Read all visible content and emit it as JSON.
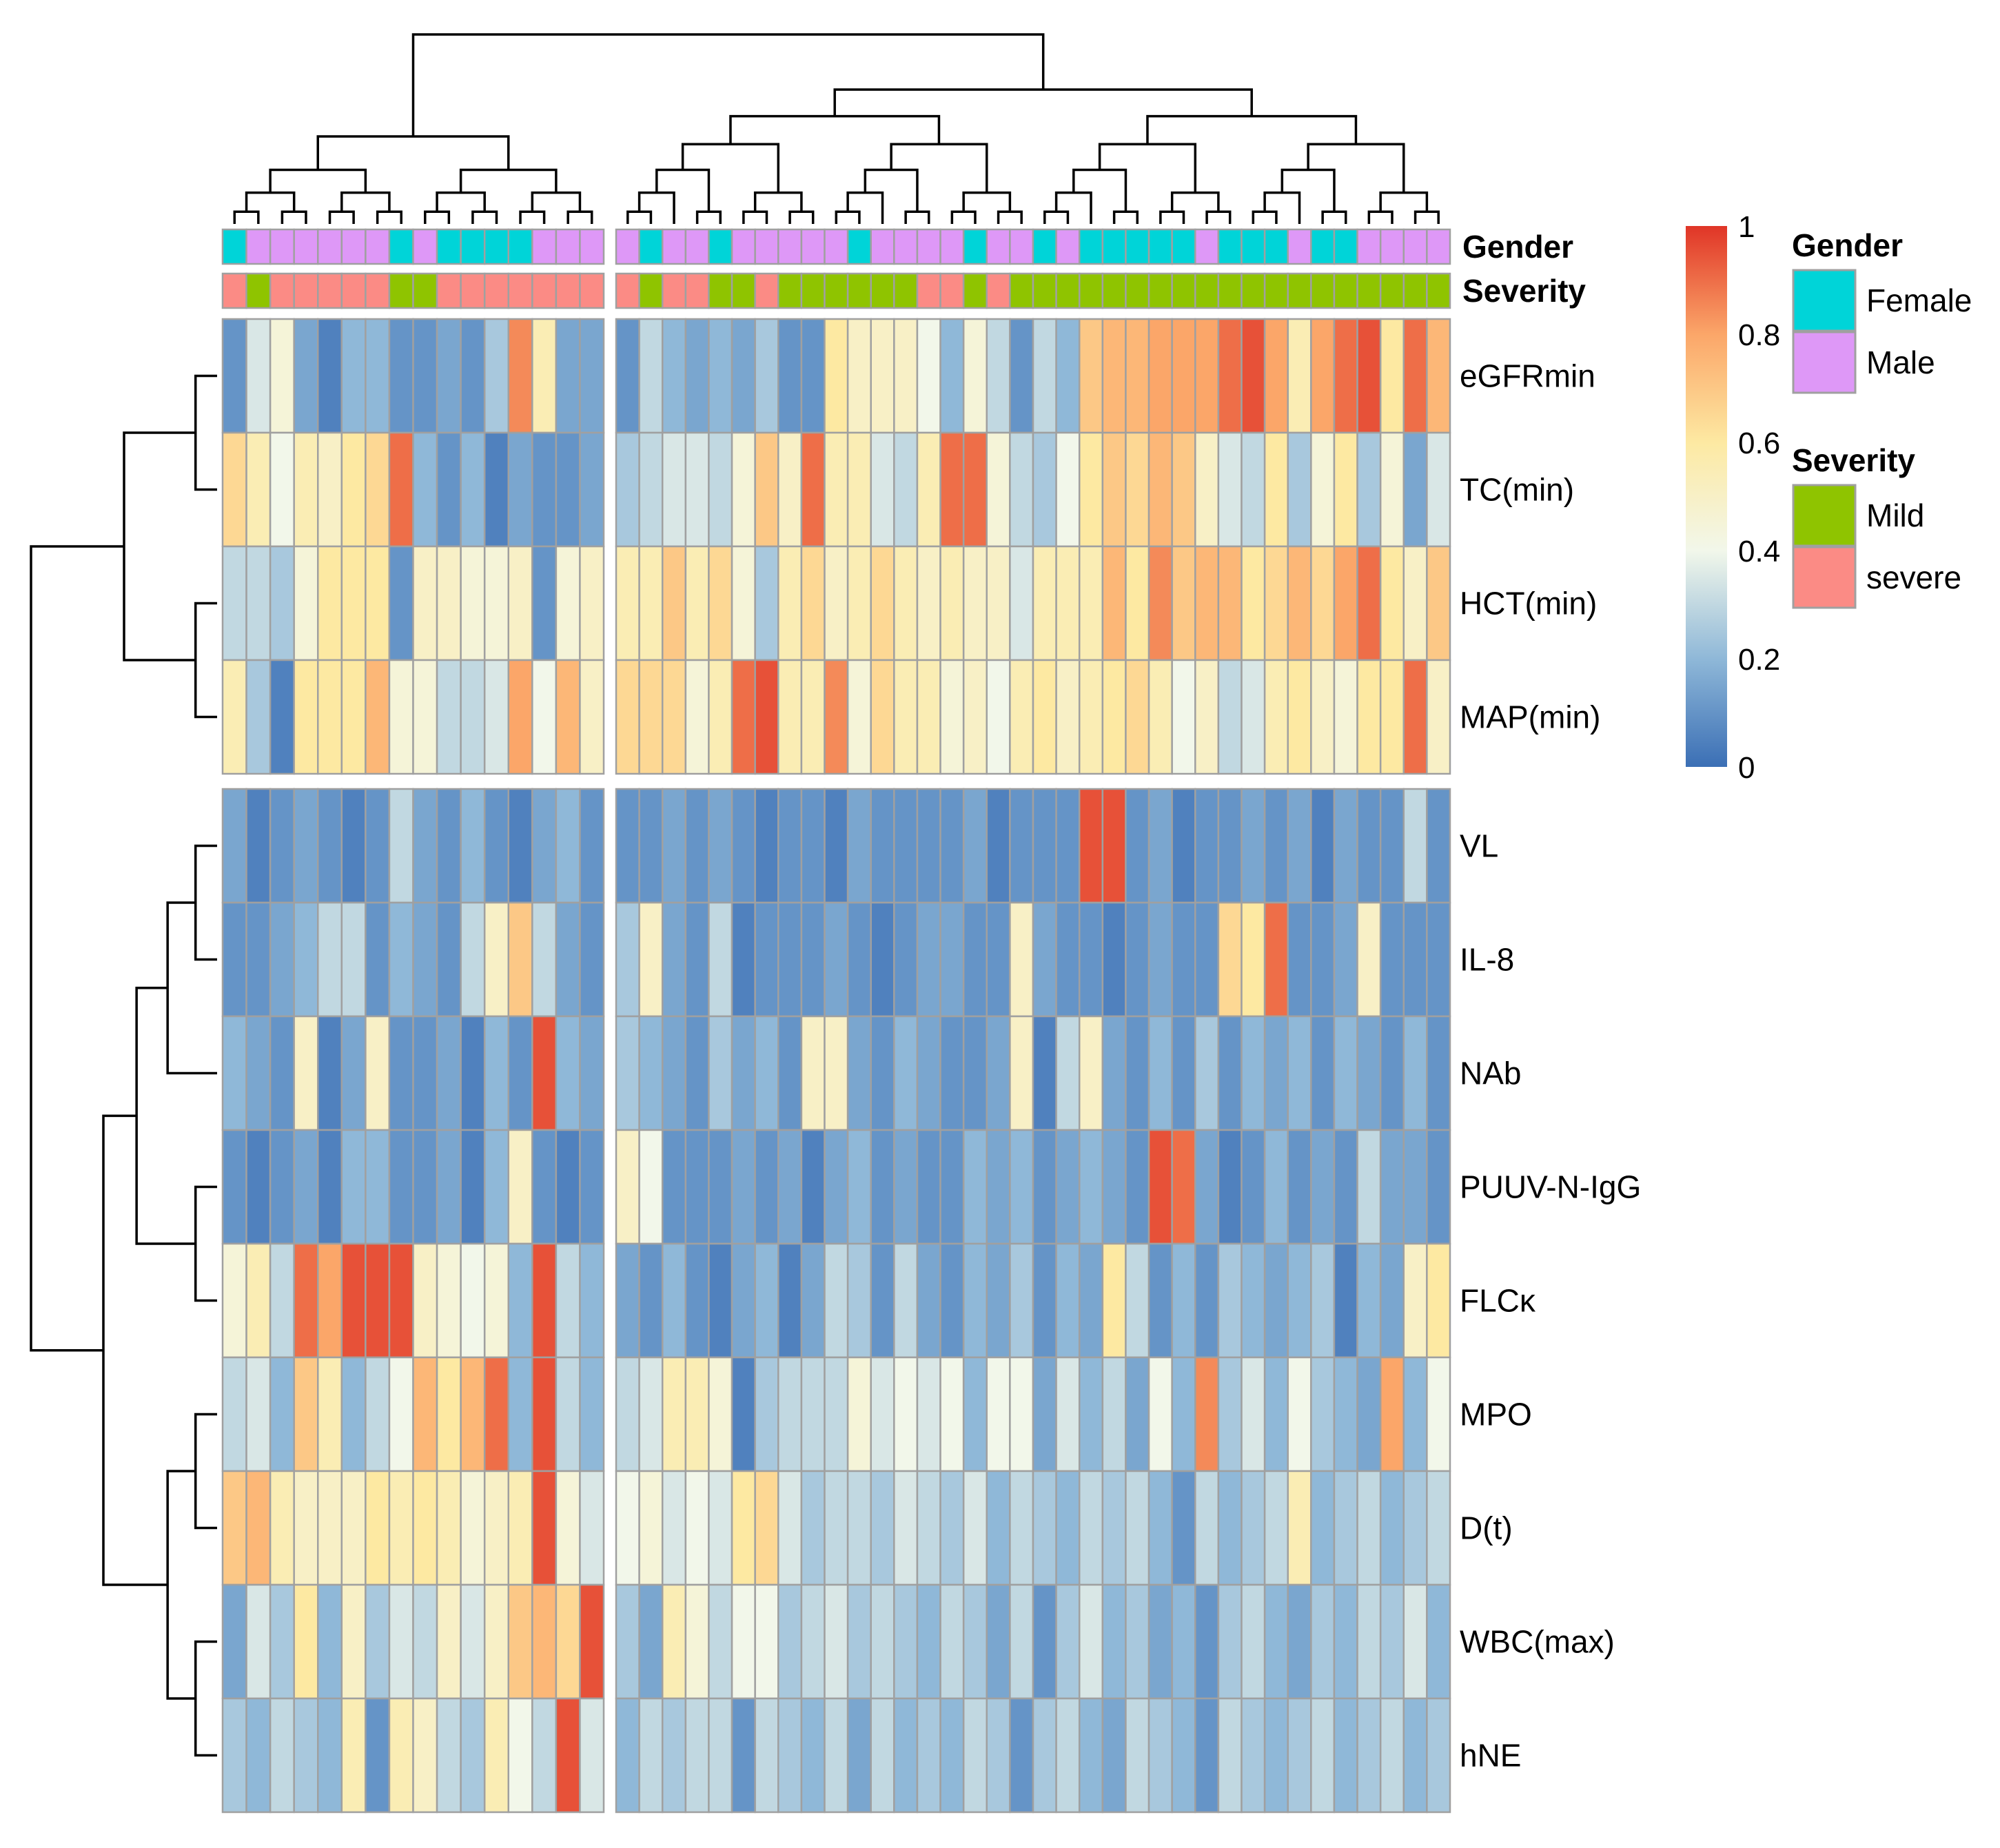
{
  "chart_data": {
    "type": "heatmap",
    "title": "",
    "rows": [
      "eGFRmin",
      "TC(min)",
      "HCT(min)",
      "MAP(min)",
      "VL",
      "IL-8",
      "NAb",
      "PUUV-N-IgG",
      "FLCκ",
      "MPO",
      "D(t)",
      "WBC(max)",
      "hNE"
    ],
    "column_split": [
      16,
      36
    ],
    "row_split": [
      4,
      9
    ],
    "annotation_rows": [
      {
        "name": "Gender",
        "values": [
          "F",
          "M",
          "M",
          "M",
          "M",
          "M",
          "M",
          "F",
          "M",
          "F",
          "F",
          "F",
          "F",
          "M",
          "M",
          "M",
          "M",
          "F",
          "M",
          "M",
          "F",
          "M",
          "M",
          "M",
          "M",
          "M",
          "F",
          "M",
          "M",
          "M",
          "M",
          "F",
          "M",
          "M",
          "F",
          "M",
          "F",
          "F",
          "F",
          "F",
          "F",
          "M",
          "F",
          "F",
          "F",
          "M",
          "F",
          "F",
          "M",
          "M",
          "M",
          "M"
        ]
      },
      {
        "name": "Severity",
        "values": [
          "S",
          "Mi",
          "S",
          "S",
          "S",
          "S",
          "S",
          "Mi",
          "Mi",
          "S",
          "S",
          "S",
          "S",
          "S",
          "S",
          "S",
          "S",
          "Mi",
          "S",
          "S",
          "Mi",
          "Mi",
          "S",
          "Mi",
          "Mi",
          "Mi",
          "Mi",
          "Mi",
          "Mi",
          "S",
          "S",
          "Mi",
          "S",
          "Mi",
          "Mi",
          "Mi",
          "Mi",
          "Mi",
          "Mi",
          "Mi",
          "Mi",
          "Mi",
          "Mi",
          "Mi",
          "Mi",
          "Mi",
          "Mi",
          "Mi",
          "Mi",
          "Mi",
          "Mi",
          "Mi"
        ]
      }
    ],
    "values": [
      [
        0.1,
        0.35,
        0.45,
        0.15,
        0.05,
        0.2,
        0.2,
        0.1,
        0.1,
        0.15,
        0.1,
        0.25,
        0.85,
        0.55,
        0.15,
        0.15,
        0.1,
        0.3,
        0.2,
        0.15,
        0.2,
        0.15,
        0.25,
        0.1,
        0.1,
        0.6,
        0.5,
        0.5,
        0.5,
        0.4,
        0.2,
        0.45,
        0.3,
        0.1,
        0.3,
        0.2,
        0.7,
        0.75,
        0.75,
        0.8,
        0.8,
        0.8,
        0.9,
        0.95,
        0.8,
        0.55,
        0.8,
        0.9,
        0.95,
        0.6,
        0.9,
        0.75
      ],
      [
        0.65,
        0.55,
        0.4,
        0.55,
        0.5,
        0.6,
        0.65,
        0.9,
        0.2,
        0.1,
        0.2,
        0.05,
        0.15,
        0.1,
        0.1,
        0.15,
        0.25,
        0.3,
        0.35,
        0.35,
        0.3,
        0.45,
        0.7,
        0.5,
        0.9,
        0.55,
        0.55,
        0.35,
        0.3,
        0.55,
        0.9,
        0.9,
        0.45,
        0.3,
        0.25,
        0.4,
        0.6,
        0.7,
        0.65,
        0.75,
        0.7,
        0.5,
        0.35,
        0.3,
        0.6,
        0.25,
        0.45,
        0.6,
        0.25,
        0.45,
        0.15,
        0.35
      ],
      [
        0.3,
        0.3,
        0.25,
        0.45,
        0.6,
        0.6,
        0.6,
        0.1,
        0.5,
        0.5,
        0.45,
        0.45,
        0.5,
        0.1,
        0.45,
        0.5,
        0.55,
        0.55,
        0.7,
        0.55,
        0.65,
        0.45,
        0.25,
        0.55,
        0.65,
        0.5,
        0.55,
        0.65,
        0.55,
        0.5,
        0.55,
        0.5,
        0.5,
        0.35,
        0.55,
        0.55,
        0.55,
        0.75,
        0.6,
        0.85,
        0.7,
        0.75,
        0.75,
        0.6,
        0.65,
        0.75,
        0.65,
        0.8,
        0.9,
        0.6,
        0.5,
        0.7
      ],
      [
        0.55,
        0.25,
        0.05,
        0.6,
        0.6,
        0.6,
        0.75,
        0.45,
        0.45,
        0.3,
        0.3,
        0.35,
        0.8,
        0.4,
        0.75,
        0.5,
        0.65,
        0.65,
        0.65,
        0.45,
        0.55,
        0.9,
        0.95,
        0.55,
        0.55,
        0.85,
        0.45,
        0.65,
        0.55,
        0.55,
        0.45,
        0.5,
        0.4,
        0.55,
        0.6,
        0.5,
        0.55,
        0.6,
        0.65,
        0.55,
        0.4,
        0.5,
        0.3,
        0.35,
        0.55,
        0.6,
        0.5,
        0.45,
        0.6,
        0.6,
        0.9,
        0.5
      ],
      [
        0.15,
        0.05,
        0.1,
        0.15,
        0.1,
        0.05,
        0.1,
        0.3,
        0.15,
        0.1,
        0.2,
        0.1,
        0.05,
        0.15,
        0.2,
        0.1,
        0.1,
        0.1,
        0.15,
        0.1,
        0.15,
        0.1,
        0.05,
        0.1,
        0.1,
        0.05,
        0.15,
        0.1,
        0.1,
        0.1,
        0.1,
        0.15,
        0.05,
        0.1,
        0.1,
        0.1,
        0.95,
        0.95,
        0.1,
        0.15,
        0.05,
        0.1,
        0.1,
        0.15,
        0.1,
        0.15,
        0.05,
        0.15,
        0.1,
        0.1,
        0.3,
        0.1
      ],
      [
        0.1,
        0.1,
        0.15,
        0.2,
        0.3,
        0.3,
        0.1,
        0.2,
        0.15,
        0.1,
        0.3,
        0.5,
        0.7,
        0.3,
        0.15,
        0.1,
        0.25,
        0.5,
        0.15,
        0.1,
        0.3,
        0.05,
        0.1,
        0.1,
        0.1,
        0.15,
        0.1,
        0.05,
        0.1,
        0.15,
        0.15,
        0.1,
        0.1,
        0.5,
        0.15,
        0.1,
        0.1,
        0.05,
        0.1,
        0.15,
        0.1,
        0.1,
        0.65,
        0.6,
        0.9,
        0.1,
        0.1,
        0.15,
        0.5,
        0.1,
        0.1,
        0.1
      ],
      [
        0.2,
        0.15,
        0.1,
        0.5,
        0.05,
        0.15,
        0.5,
        0.1,
        0.1,
        0.15,
        0.05,
        0.2,
        0.1,
        0.95,
        0.2,
        0.15,
        0.25,
        0.2,
        0.15,
        0.1,
        0.25,
        0.15,
        0.2,
        0.1,
        0.5,
        0.5,
        0.15,
        0.1,
        0.2,
        0.15,
        0.1,
        0.1,
        0.15,
        0.5,
        0.05,
        0.3,
        0.5,
        0.15,
        0.1,
        0.2,
        0.1,
        0.25,
        0.1,
        0.2,
        0.15,
        0.2,
        0.1,
        0.2,
        0.15,
        0.1,
        0.2,
        0.1
      ],
      [
        0.1,
        0.05,
        0.1,
        0.15,
        0.05,
        0.2,
        0.2,
        0.1,
        0.1,
        0.15,
        0.05,
        0.2,
        0.5,
        0.1,
        0.05,
        0.1,
        0.5,
        0.4,
        0.1,
        0.1,
        0.1,
        0.15,
        0.1,
        0.15,
        0.05,
        0.15,
        0.2,
        0.1,
        0.15,
        0.1,
        0.1,
        0.2,
        0.15,
        0.2,
        0.1,
        0.15,
        0.2,
        0.15,
        0.1,
        0.95,
        0.9,
        0.15,
        0.05,
        0.1,
        0.2,
        0.1,
        0.15,
        0.1,
        0.3,
        0.15,
        0.15,
        0.1
      ],
      [
        0.45,
        0.55,
        0.3,
        0.9,
        0.8,
        0.95,
        0.95,
        0.95,
        0.5,
        0.45,
        0.4,
        0.45,
        0.2,
        0.95,
        0.3,
        0.2,
        0.15,
        0.1,
        0.2,
        0.1,
        0.05,
        0.15,
        0.2,
        0.05,
        0.15,
        0.3,
        0.25,
        0.1,
        0.3,
        0.15,
        0.1,
        0.2,
        0.15,
        0.25,
        0.1,
        0.2,
        0.15,
        0.6,
        0.3,
        0.1,
        0.2,
        0.1,
        0.25,
        0.2,
        0.15,
        0.2,
        0.25,
        0.05,
        0.2,
        0.15,
        0.5,
        0.6
      ],
      [
        0.3,
        0.35,
        0.2,
        0.7,
        0.55,
        0.2,
        0.3,
        0.4,
        0.75,
        0.6,
        0.75,
        0.9,
        0.2,
        0.95,
        0.3,
        0.2,
        0.3,
        0.35,
        0.55,
        0.55,
        0.45,
        0.05,
        0.25,
        0.3,
        0.3,
        0.3,
        0.45,
        0.35,
        0.4,
        0.35,
        0.4,
        0.2,
        0.4,
        0.4,
        0.15,
        0.35,
        0.2,
        0.3,
        0.15,
        0.4,
        0.2,
        0.85,
        0.25,
        0.35,
        0.2,
        0.4,
        0.25,
        0.2,
        0.15,
        0.8,
        0.2,
        0.4
      ],
      [
        0.7,
        0.75,
        0.55,
        0.5,
        0.5,
        0.5,
        0.6,
        0.55,
        0.6,
        0.55,
        0.45,
        0.5,
        0.55,
        0.95,
        0.45,
        0.35,
        0.4,
        0.45,
        0.35,
        0.4,
        0.35,
        0.6,
        0.65,
        0.35,
        0.25,
        0.3,
        0.3,
        0.25,
        0.35,
        0.3,
        0.25,
        0.35,
        0.2,
        0.3,
        0.25,
        0.2,
        0.3,
        0.25,
        0.3,
        0.2,
        0.1,
        0.3,
        0.2,
        0.25,
        0.3,
        0.55,
        0.2,
        0.25,
        0.3,
        0.2,
        0.25,
        0.3
      ],
      [
        0.15,
        0.35,
        0.25,
        0.6,
        0.2,
        0.5,
        0.25,
        0.35,
        0.3,
        0.5,
        0.35,
        0.5,
        0.7,
        0.75,
        0.65,
        0.95,
        0.25,
        0.15,
        0.55,
        0.45,
        0.3,
        0.4,
        0.4,
        0.25,
        0.3,
        0.35,
        0.25,
        0.3,
        0.25,
        0.2,
        0.3,
        0.25,
        0.15,
        0.3,
        0.1,
        0.25,
        0.35,
        0.2,
        0.25,
        0.15,
        0.2,
        0.1,
        0.25,
        0.3,
        0.2,
        0.15,
        0.25,
        0.2,
        0.3,
        0.25,
        0.35,
        0.2
      ],
      [
        0.25,
        0.2,
        0.3,
        0.25,
        0.2,
        0.55,
        0.1,
        0.55,
        0.5,
        0.3,
        0.25,
        0.55,
        0.4,
        0.3,
        0.95,
        0.35,
        0.2,
        0.3,
        0.25,
        0.3,
        0.3,
        0.1,
        0.3,
        0.25,
        0.2,
        0.3,
        0.15,
        0.3,
        0.2,
        0.25,
        0.2,
        0.3,
        0.25,
        0.1,
        0.25,
        0.3,
        0.2,
        0.15,
        0.3,
        0.25,
        0.2,
        0.1,
        0.3,
        0.25,
        0.2,
        0.25,
        0.3,
        0.2,
        0.25,
        0.3,
        0.2,
        0.25
      ]
    ],
    "legend": {
      "colorbar": {
        "ticks": [
          "0",
          "0.2",
          "0.4",
          "0.6",
          "0.8",
          "1"
        ],
        "range": [
          0,
          1
        ],
        "colors": [
          "#3b6fb5",
          "#8fb8d8",
          "#f2f7ea",
          "#fde9a2",
          "#fba669",
          "#e03527"
        ]
      },
      "groups": [
        {
          "title": "Gender",
          "items": [
            {
              "label": "Female",
              "color": "#00d4d8"
            },
            {
              "label": "Male",
              "color": "#de98f7"
            }
          ]
        },
        {
          "title": "Severity",
          "items": [
            {
              "label": "Mild",
              "color": "#8fc400"
            },
            {
              "label": "severe",
              "color": "#fb8b85"
            }
          ]
        }
      ],
      "placement": "right"
    },
    "annotation_colors": {
      "Gender": {
        "F": "#00d4d8",
        "M": "#de98f7"
      },
      "Severity": {
        "Mi": "#8fc400",
        "S": "#fb8b85"
      }
    }
  }
}
